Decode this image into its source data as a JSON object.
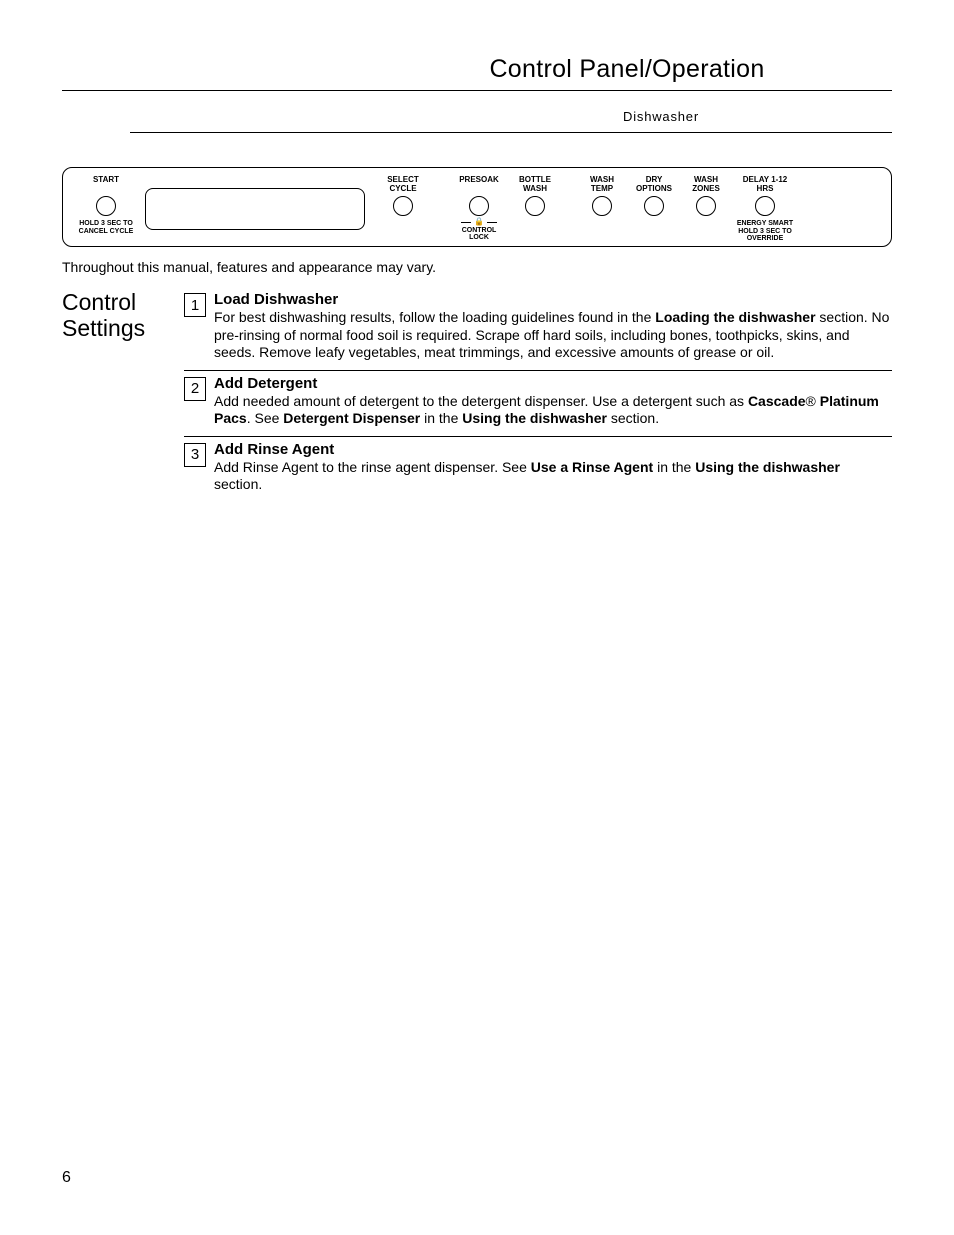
{
  "header": {
    "title": "Control Panel/Operation",
    "subtitle": "Dishwasher"
  },
  "panel": {
    "start": {
      "top": "START",
      "bottom": "HOLD 3 SEC TO CANCEL CYCLE"
    },
    "select_cycle": "SELECT CYCLE",
    "presoak": "PRESOAK",
    "bottle_wash": "BOTTLE WASH",
    "control_lock": "CONTROL LOCK",
    "lock_icon": "🔒",
    "wash_temp": "WASH TEMP",
    "dry_options": "DRY OPTIONS",
    "wash_zones": "WASH ZONES",
    "delay": {
      "top": "DELAY 1-12 HRS",
      "bottom": "ENERGY SMART HOLD 3 SEC TO OVERRIDE"
    }
  },
  "variation_note": "Throughout this manual, features and appearance may vary.",
  "side_heading": "Control Settings",
  "steps": [
    {
      "num": "1",
      "title": "Load Dishwasher",
      "body_html": "For best dishwashing results, follow the loading guidelines found in the <b>Loading the dishwasher</b> section. No pre-rinsing of normal food soil is required. Scrape off hard soils, including bones, toothpicks, skins, and seeds. Remove leafy vegetables, meat trimmings, and excessive amounts of grease or oil."
    },
    {
      "num": "2",
      "title": "Add Detergent",
      "body_html": "Add needed amount of detergent to the detergent dispenser. Use a detergent such as <b>Cascade</b>® <b>Platinum Pacs</b>. See <b>Detergent Dispenser</b> in the <b>Using the dishwasher</b> section."
    },
    {
      "num": "3",
      "title": "Add Rinse Agent",
      "body_html": "Add Rinse Agent to the rinse agent dispenser. See <b>Use a Rinse Agent</b> in the <b>Using the dishwasher</b> section."
    }
  ],
  "page_number": "6"
}
